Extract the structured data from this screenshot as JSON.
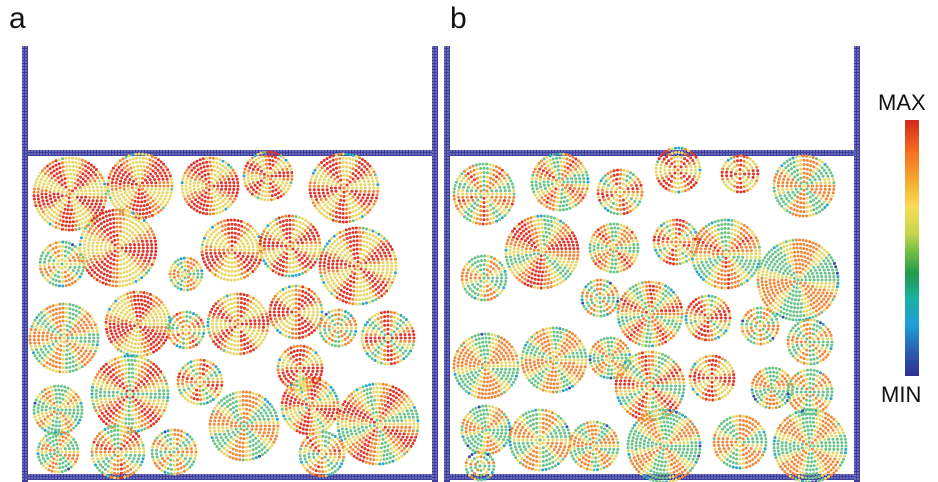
{
  "panels": [
    {
      "id": "a",
      "label": "a"
    },
    {
      "id": "b",
      "label": "b"
    }
  ],
  "colorbar": {
    "max_label": "MAX",
    "min_label": "MIN",
    "colors_top_to_bottom": [
      "#d7261b",
      "#f46d21",
      "#f6a02a",
      "#f9dc55",
      "#c8d64a",
      "#6bbd45",
      "#1f9a4a",
      "#1ab1a6",
      "#1e9fd8",
      "#2b5fb0",
      "#2e3191"
    ]
  },
  "wall_color": "#3f3f9e",
  "particle_palette": {
    "high": "#e0362a",
    "mid_high": "#f08a3a",
    "mid": "#e8d86a",
    "mid_low": "#6cc48a",
    "low": "#2aa6c8",
    "min": "#3a4aa8"
  }
}
